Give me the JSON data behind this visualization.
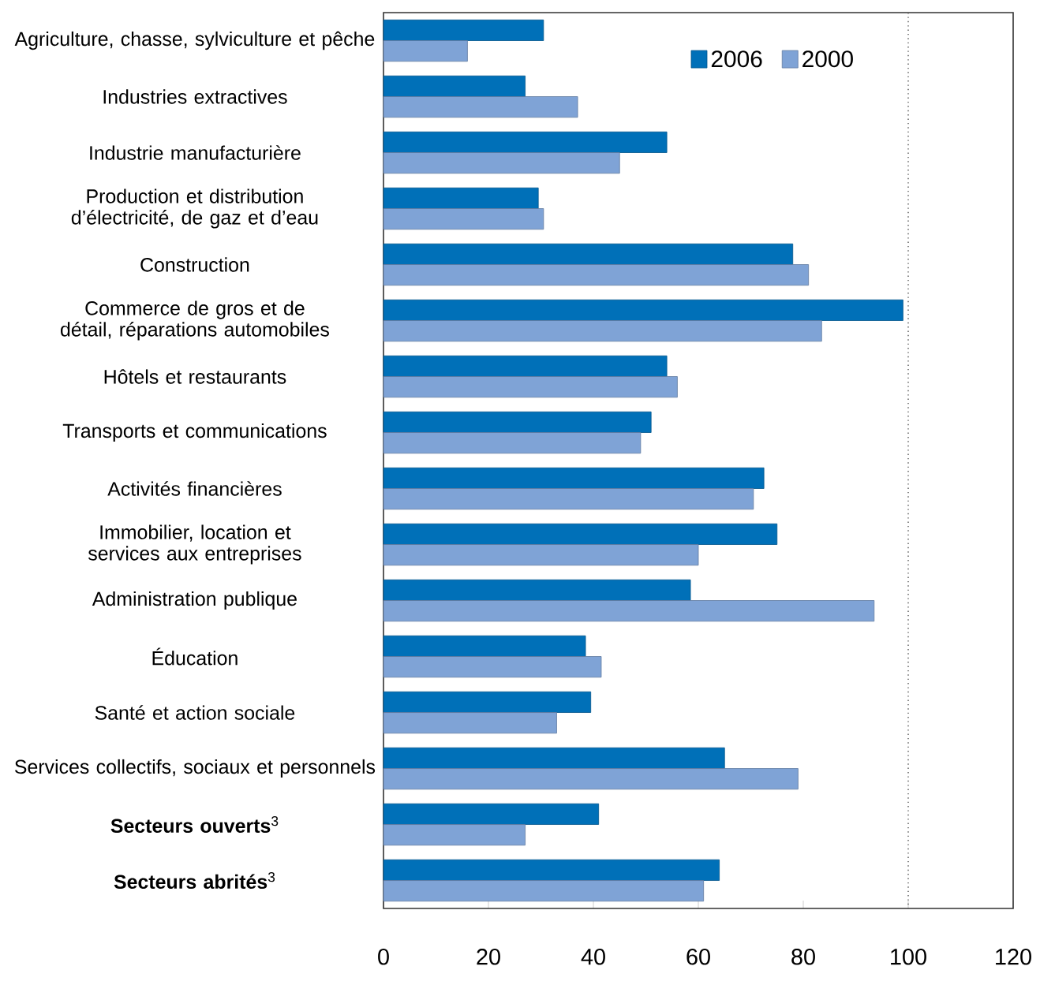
{
  "chart_data": {
    "type": "bar",
    "orientation": "horizontal",
    "categories": [
      "Agriculture, chasse, sylviculture et pêche",
      "Industries extractives",
      "Industrie manufacturière",
      "Production et distribution d’électricité, de gaz et d’eau",
      "Construction",
      "Commerce de gros et de détail, réparations automobiles",
      "Hôtels et restaurants",
      "Transports et communications",
      "Activités financières",
      "Immobilier, location et services aux entreprises",
      "Administration publique",
      "Éducation",
      "Santé et action sociale",
      "Services collectifs, sociaux et personnels",
      "**Secteurs ouverts**$^{3}$",
      "**Secteurs abrités**$^{3}$"
    ],
    "series": [
      {
        "name": "2006",
        "color": "#0070b8",
        "values": [
          30.5,
          27,
          54,
          29.5,
          78,
          99,
          54,
          51,
          72.5,
          75,
          58.5,
          38.5,
          39.5,
          65,
          41,
          64
        ]
      },
      {
        "name": "2000",
        "color": "#7fa3d6",
        "values": [
          16,
          37,
          45,
          30.5,
          81,
          83.5,
          56,
          49,
          70.5,
          60,
          93.5,
          41.5,
          33,
          79,
          27,
          61
        ]
      }
    ],
    "xlim": [
      0,
      120
    ],
    "xticks": [
      0,
      20,
      40,
      60,
      80,
      100,
      120
    ],
    "ref_lines": [
      {
        "axis": "x",
        "value": 100,
        "color": "#555555",
        "line_style": "dotted"
      }
    ],
    "legend": "top right",
    "grid": false
  }
}
